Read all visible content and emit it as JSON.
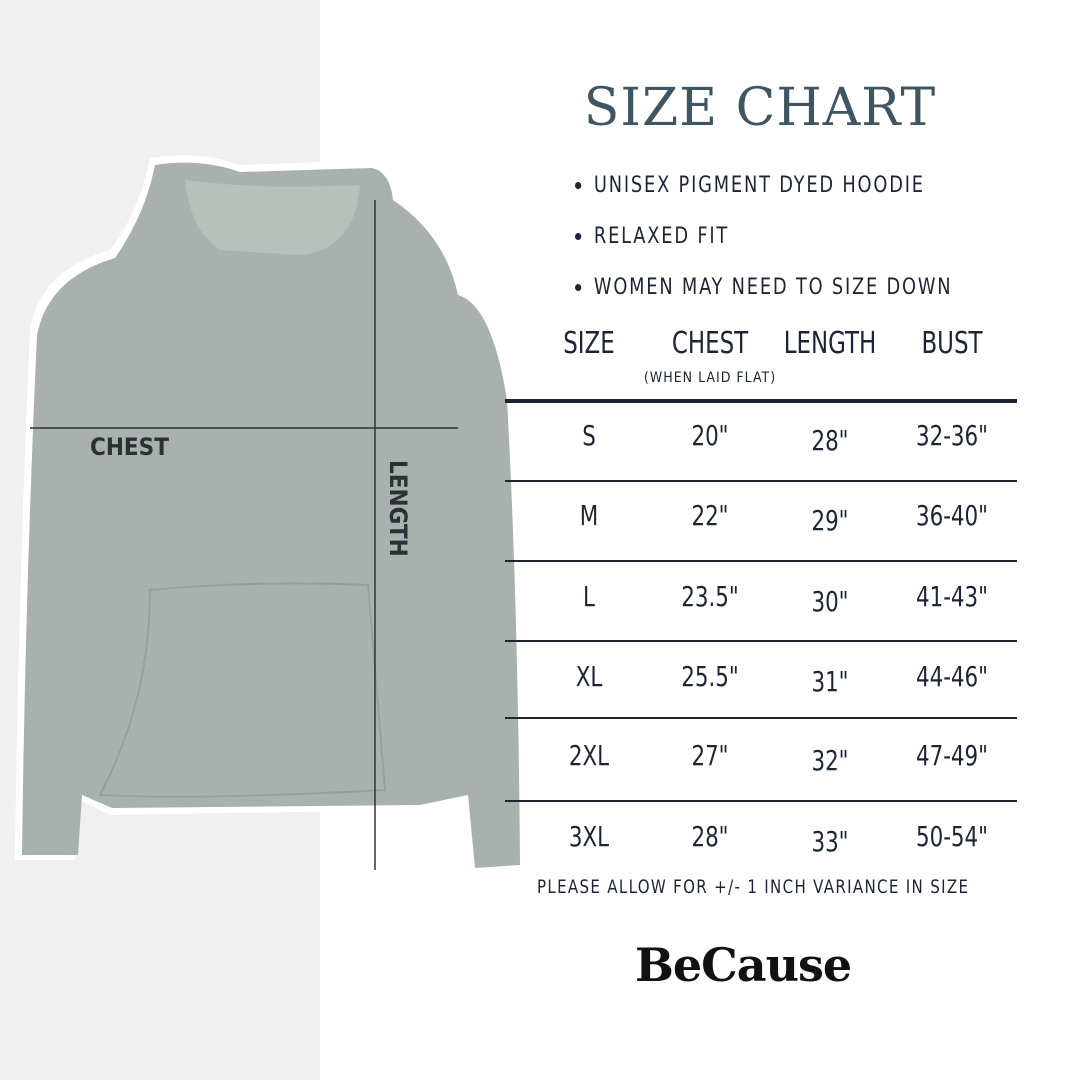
{
  "title": "SIZE CHART",
  "bullets": [
    "UNISEX PIGMENT DYED HOODIE",
    "RELAXED FIT",
    "WOMEN MAY NEED TO SIZE DOWN"
  ],
  "table": {
    "headers": [
      "SIZE",
      "CHEST",
      "LENGTH",
      "BUST"
    ],
    "chest_note": "(WHEN LAID FLAT)",
    "rows": [
      [
        "S",
        "20\"",
        "28\"",
        "32-36\""
      ],
      [
        "M",
        "22\"",
        "29\"",
        "36-40\""
      ],
      [
        "L",
        "23.5\"",
        "30\"",
        "41-43\""
      ],
      [
        "XL",
        "25.5\"",
        "31\"",
        "44-46\""
      ],
      [
        "2XL",
        "27\"",
        "32\"",
        "47-49\""
      ],
      [
        "3XL",
        "28\"",
        "33\"",
        "50-54\""
      ]
    ]
  },
  "note": "PLEASE ALLOW FOR +/- 1 INCH VARIANCE IN SIZE",
  "brand": "BeCause",
  "diagram": {
    "chest_label": "CHEST",
    "length_label": "LENGTH"
  },
  "colors": {
    "title": "#3e5562",
    "text": "#1d2535",
    "hoodie": "#a8b1ad",
    "panel": "#f0f0f0"
  }
}
